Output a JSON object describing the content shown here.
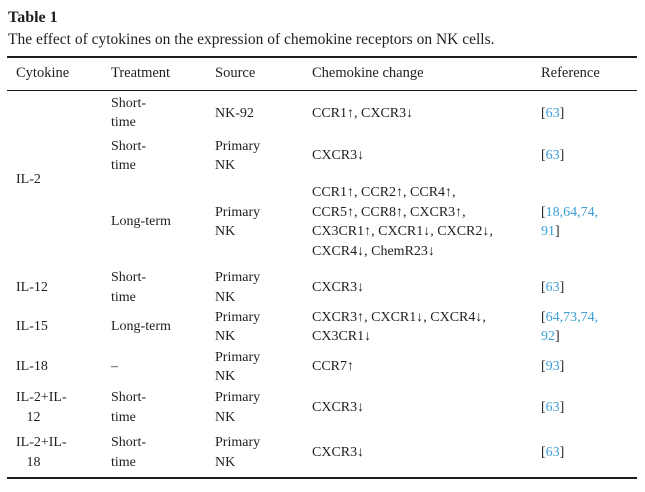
{
  "document": {
    "label": "Table 1",
    "caption": "The effect of cytokines on the expression of chemokine receptors on NK cells."
  },
  "colors": {
    "link": "#3d9fd6",
    "text": "#1f1f1f",
    "rule": "#1c1c1c",
    "background": "#ffffff"
  },
  "table": {
    "columns": [
      "Cytokine",
      "Treatment",
      "Source",
      "Chemokine change",
      "Reference"
    ],
    "rows": [
      {
        "cytokine": "IL-2",
        "cytokine_rowspan": 3,
        "treatment": "Short-\ntime",
        "source": "NK-92",
        "chemokine": "CCR1↑, CXCR3↓",
        "reference": {
          "open": "[",
          "nums": [
            "63"
          ],
          "close": "]"
        }
      },
      {
        "treatment": "Short-\ntime",
        "source": "Primary\nNK",
        "chemokine": "CXCR3↓",
        "reference": {
          "open": "[",
          "nums": [
            "63"
          ],
          "close": "]"
        }
      },
      {
        "treatment": "Long-term",
        "source": "Primary\nNK",
        "chemokine": "CCR1↑, CCR2↑, CCR4↑,\nCCR5↑, CCR8↑, CXCR3↑,\nCX3CR1↑, CXCR1↓, CXCR2↓,\nCXCR4↓, ChemR23↓",
        "reference": {
          "open": "[",
          "nums": [
            "18",
            "64",
            "74",
            "91"
          ],
          "sep": ",",
          "break_after": 3,
          "close": "]"
        }
      },
      {
        "cytokine": "IL-12",
        "treatment": "Short-\ntime",
        "source": "Primary\nNK",
        "chemokine": "CXCR3↓",
        "reference": {
          "open": "[",
          "nums": [
            "63"
          ],
          "close": "]"
        }
      },
      {
        "cytokine": "IL-15",
        "treatment": "Long-term",
        "source": "Primary\nNK",
        "chemokine": "CXCR3↑, CXCR1↓, CXCR4↓,\nCX3CR1↓",
        "reference": {
          "open": "[",
          "nums": [
            "64",
            "73",
            "74",
            "92"
          ],
          "sep": ",",
          "break_after": 3,
          "close": "]"
        }
      },
      {
        "cytokine": "IL-18",
        "treatment": "–",
        "source": "Primary\nNK",
        "chemokine": "CCR7↑",
        "reference": {
          "open": "[",
          "nums": [
            "93"
          ],
          "close": "]"
        }
      },
      {
        "cytokine": "IL-2+IL-\n   12",
        "treatment": "Short-\ntime",
        "source": "Primary\nNK",
        "chemokine": "CXCR3↓",
        "reference": {
          "open": "[",
          "nums": [
            "63"
          ],
          "close": "]"
        }
      },
      {
        "cytokine": "IL-2+IL-\n   18",
        "treatment": "Short-\ntime",
        "source": "Primary\nNK",
        "chemokine": "CXCR3↓",
        "reference": {
          "open": "[",
          "nums": [
            "63"
          ],
          "close": "]"
        }
      }
    ]
  }
}
